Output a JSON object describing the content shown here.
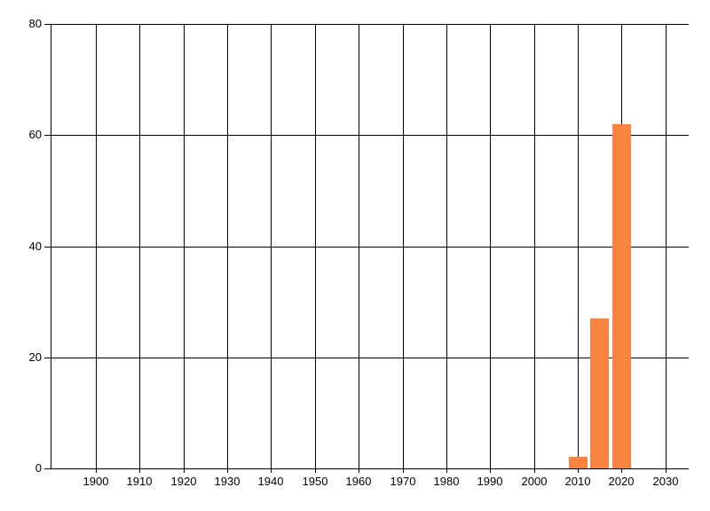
{
  "chart_data": {
    "type": "bar",
    "title": "",
    "xlabel": "",
    "ylabel": "",
    "x_tick_labels": [
      "1900",
      "1910",
      "1920",
      "1930",
      "1940",
      "1950",
      "1960",
      "1970",
      "1980",
      "1990",
      "2000",
      "2010",
      "2020",
      "2030"
    ],
    "x_tick_values": [
      1900,
      1910,
      1920,
      1930,
      1940,
      1950,
      1960,
      1970,
      1980,
      1990,
      2000,
      2010,
      2020,
      2030
    ],
    "y_tick_labels": [
      "0",
      "20",
      "40",
      "60",
      "80"
    ],
    "y_tick_values": [
      0,
      20,
      40,
      60,
      80
    ],
    "xlim": [
      1889.7,
      2035.3
    ],
    "ylim": [
      0,
      80
    ],
    "grid": true,
    "legend": null,
    "bar_width_years": 4.2,
    "bars": [
      {
        "year": 2010,
        "value": 2
      },
      {
        "year": 2015,
        "value": 27
      },
      {
        "year": 2020,
        "value": 62
      }
    ],
    "colors": {
      "bar": "#fb8340",
      "grid": "#000000",
      "text": "#000000",
      "background": "#ffffff"
    }
  }
}
